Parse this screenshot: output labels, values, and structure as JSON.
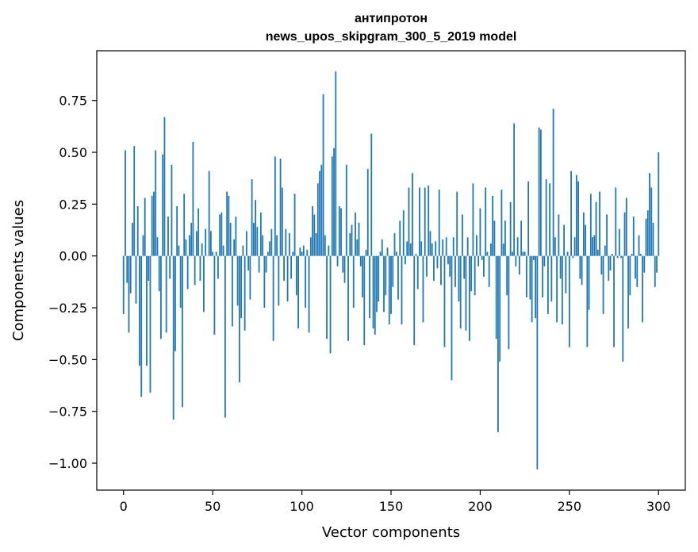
{
  "chart_data": {
    "type": "bar",
    "title": "антипротон",
    "subtitle": "news_upos_skipgram_300_5_2019 model",
    "xlabel": "Vector components",
    "ylabel": "Components values",
    "xlim": [
      -15,
      315
    ],
    "ylim": [
      -1.13,
      0.99
    ],
    "xticks": [
      0,
      50,
      100,
      150,
      200,
      250,
      300
    ],
    "yticks": [
      0.75,
      0.5,
      0.25,
      0.0,
      -0.25,
      -0.5,
      -0.75,
      -1.0
    ],
    "xtick_labels": [
      "0",
      "50",
      "100",
      "150",
      "200",
      "250",
      "300"
    ],
    "ytick_labels": [
      "0.75",
      "0.50",
      "0.25",
      "0.00",
      "−0.25",
      "−0.50",
      "−0.75",
      "−1.00"
    ],
    "bar_color": "#1f77b4",
    "grid": false,
    "values": [
      -0.28,
      0.51,
      -0.13,
      -0.37,
      -0.18,
      0.16,
      0.53,
      -0.23,
      0.24,
      -0.53,
      -0.68,
      0.1,
      0.28,
      -0.53,
      -0.12,
      -0.66,
      0.29,
      0.31,
      0.51,
      0.09,
      -0.17,
      -0.4,
      0.49,
      0.67,
      -0.37,
      0.19,
      -0.11,
      0.44,
      -0.79,
      -0.46,
      0.24,
      0.05,
      -0.25,
      -0.73,
      0.3,
      0.08,
      -0.16,
      0.1,
      0.16,
      0.55,
      -0.14,
      0.12,
      0.23,
      -0.12,
      0.06,
      -0.27,
      0.13,
      0.0,
      0.41,
      0.12,
      0.02,
      -0.38,
      0.02,
      -0.11,
      0.2,
      0.21,
      0.05,
      -0.78,
      0.31,
      0.29,
      0.16,
      -0.34,
      0.08,
      0.19,
      -0.24,
      -0.61,
      -0.3,
      0.05,
      -0.36,
      0.12,
      -0.07,
      -0.21,
      0.37,
      0.16,
      0.27,
      0.14,
      -0.08,
      0.21,
      0.1,
      -0.25,
      -0.08,
      0.02,
      0.07,
      0.13,
      -0.41,
      0.48,
      0.1,
      -0.24,
      0.47,
      0.33,
      -0.12,
      0.13,
      -0.22,
      0.11,
      -0.11,
      0.02,
      0.3,
      -0.19,
      -0.35,
      0.04,
      0.02,
      0.05,
      -0.25,
      0.03,
      -0.37,
      0.09,
      0.24,
      0.2,
      0.11,
      0.35,
      0.41,
      0.44,
      0.78,
      0.1,
      -0.4,
      0.05,
      -0.47,
      0.48,
      0.52,
      0.89,
      -0.05,
      0.24,
      0.23,
      -0.08,
      -0.13,
      0.44,
      -0.41,
      0.11,
      0.15,
      -0.25,
      0.21,
      0.08,
      0.16,
      -0.05,
      -0.2,
      -0.43,
      0.03,
      0.42,
      -0.3,
      0.59,
      -0.35,
      -0.38,
      -0.27,
      -0.22,
      0.02,
      0.08,
      -0.27,
      -0.19,
      0.04,
      -0.33,
      -0.28,
      -0.15,
      0.11,
      0.02,
      -0.21,
      0.17,
      -0.33,
      0.22,
      -0.04,
      0.07,
      0.33,
      0.06,
      0.4,
      -0.43,
      0.01,
      -0.16,
      0.33,
      0.07,
      -0.32,
      0.33,
      -0.1,
      0.34,
      0.12,
      0.06,
      -0.12,
      0.07,
      -0.06,
      0.32,
      -0.14,
      0.08,
      -0.44,
      0.09,
      -0.04,
      -0.1,
      -0.6,
      0.09,
      -0.15,
      0.31,
      -0.22,
      -0.35,
      0.2,
      -0.11,
      -0.36,
      0.09,
      -0.41,
      -0.17,
      0.35,
      -0.19,
      0.1,
      -0.05,
      0.23,
      -0.02,
      -0.1,
      0.33,
      0.02,
      -0.15,
      0.06,
      0.29,
      0.17,
      -0.4,
      -0.85,
      -0.51,
      0.32,
      0.06,
      0.17,
      -0.19,
      -0.45,
      0.26,
      0.02,
      0.64,
      -0.05,
      0.09,
      -0.09,
      0.17,
      0.02,
      0.02,
      -0.2,
      0.36,
      -0.21,
      -0.32,
      -0.02,
      -0.3,
      -1.03,
      0.62,
      0.61,
      -0.2,
      -0.05,
      0.37,
      -0.28,
      0.35,
      -0.22,
      0.71,
      0.09,
      -0.32,
      0.2,
      -0.11,
      -0.33,
      0.15,
      -0.18,
      0.02,
      -0.44,
      0.41,
      -0.01,
      0.09,
      0.39,
      0.36,
      -0.11,
      -0.14,
      0.21,
      0.15,
      -0.44,
      -0.26,
      0.3,
      0.09,
      0.1,
      0.26,
      0.03,
      0.31,
      -0.09,
      -0.28,
      0.05,
      0.2,
      -0.12,
      -0.07,
      0.01,
      -0.44,
      0.33,
      -0.01,
      0.13,
      -0.01,
      -0.51,
      0.21,
      0.28,
      -0.35,
      -0.19,
      0.01,
      0.19,
      -0.11,
      -0.15,
      0.1,
      0.01,
      -0.32,
      -0.08,
      0.18,
      0.22,
      0.4,
      0.33,
      0.16,
      -0.15,
      -0.08,
      0.5
    ]
  }
}
